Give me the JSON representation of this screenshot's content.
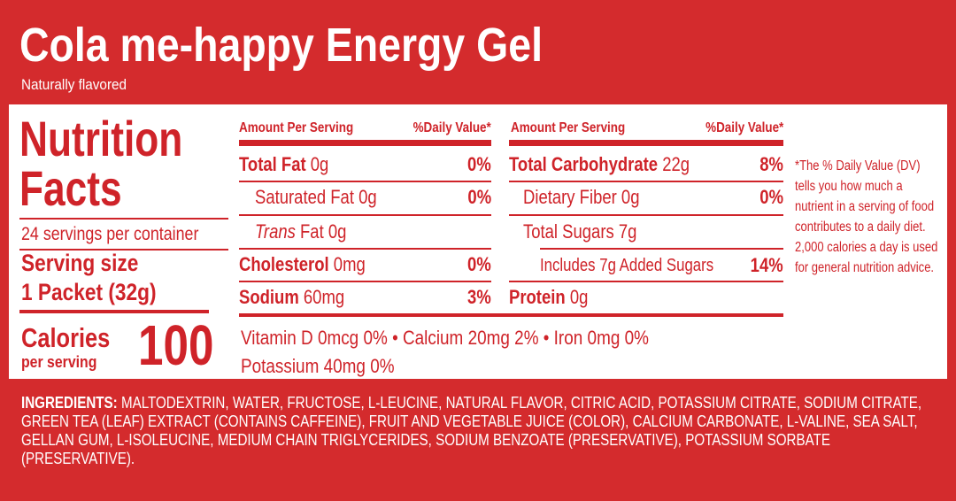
{
  "header": {
    "title": "Cola me-happy Energy Gel",
    "subtitle": "Naturally flavored"
  },
  "facts": {
    "heading_1": "Nutrition",
    "heading_2": "Facts",
    "servings": "24 servings per container",
    "serving_size_label": "Serving size",
    "serving_size": "1 Packet (32g)",
    "calories_label": "Calories",
    "calories_sub": "per serving",
    "calories": "100"
  },
  "table_left": {
    "header_amount": "Amount Per Serving",
    "header_dv": "%Daily Value*",
    "rows": [
      {
        "label": "Total Fat",
        "amount": "0g",
        "dv": "0%"
      },
      {
        "label": "Saturated Fat",
        "amount": "0g",
        "dv": "0%"
      },
      {
        "label_italic": "Trans",
        "label": "Fat",
        "amount": "0g"
      },
      {
        "label": "Cholesterol",
        "amount": "0mg",
        "dv": "0%"
      },
      {
        "label": "Sodium",
        "amount": "60mg",
        "dv": "3%"
      }
    ]
  },
  "table_right": {
    "header_amount": "Amount Per Serving",
    "header_dv": "%Daily Value*",
    "rows": [
      {
        "label": "Total Carbohydrate",
        "amount": "22g",
        "dv": "8%"
      },
      {
        "label": "Dietary Fiber",
        "amount": "0g",
        "dv": "0%"
      },
      {
        "label": "Total Sugars",
        "amount": "7g"
      },
      {
        "label": "Includes 7g Added Sugars",
        "dv": "14%"
      },
      {
        "label": "Protein",
        "amount": "0g"
      }
    ]
  },
  "vitamins": [
    {
      "name": "Vitamin D",
      "amount": "0mcg",
      "dv": "0%"
    },
    {
      "name": "Calcium",
      "amount": "20mg",
      "dv": "2%"
    },
    {
      "name": "Iron",
      "amount": "0mg",
      "dv": "0%"
    },
    {
      "name": "Potassium",
      "amount": "40mg",
      "dv": "0%"
    }
  ],
  "footnote": "*The % Daily Value (DV) tells you how much a nutrient in a serving of food contributes to a daily diet. 2,000 calories a day is used for general nutrition advice.",
  "ingredients": {
    "label": "INGREDIENTS:",
    "text": "MALTODEXTRIN, WATER, FRUCTOSE, L-LEUCINE, NATURAL FLAVOR, CITRIC ACID, POTASSIUM CITRATE, SODIUM CITRATE, GREEN TEA (LEAF) EXTRACT (CONTAINS CAFFEINE), FRUIT AND VEGETABLE JUICE (COLOR), CALCIUM CARBONATE, L-VALINE, SEA SALT, GELLAN GUM, L-ISOLEUCINE, MEDIUM CHAIN TRIGLYCERIDES, SODIUM BENZOATE (PRESERVATIVE), POTASSIUM SORBATE (PRESERVATIVE)."
  }
}
